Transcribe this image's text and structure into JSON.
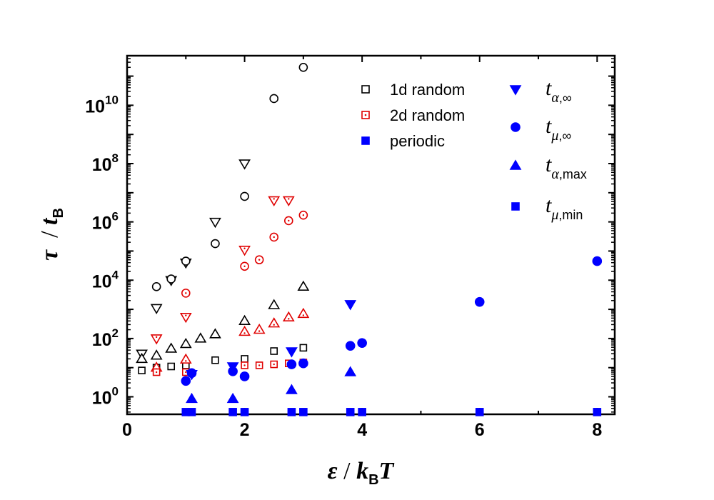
{
  "chart_data": {
    "type": "scatter",
    "xlabel": {
      "symbol": "ε",
      "separator": " / ",
      "k": "k",
      "k_sub": "B",
      "T": "T"
    },
    "ylabel": {
      "symbol": "τ",
      "separator": "  / ",
      "t": "t",
      "t_sub": "B"
    },
    "xlim": [
      0,
      8.3
    ],
    "ylim_log10": [
      -0.6,
      11.7
    ],
    "x_ticks": [
      0,
      2,
      4,
      6,
      8
    ],
    "x_tick_labels": [
      "0",
      "2",
      "4",
      "6",
      "8"
    ],
    "y_tick_exponents": [
      0,
      2,
      4,
      6,
      8,
      10
    ],
    "y_tick_base": "10",
    "legend_left": [
      {
        "label": "1d random",
        "color": "#000000",
        "marker": "square-open"
      },
      {
        "label": "2d random",
        "color": "#e00000",
        "marker": "square-dot"
      },
      {
        "label": "periodic",
        "color": "#0000ff",
        "marker": "square-filled"
      }
    ],
    "legend_right": [
      {
        "symbol": "t",
        "sub_greek": "α",
        "sub_text": ",∞",
        "marker": "triangle-down"
      },
      {
        "symbol": "t",
        "sub_greek": "μ",
        "sub_text": ",∞",
        "marker": "circle"
      },
      {
        "symbol": "t",
        "sub_greek": "α",
        "sub_text": ",max",
        "marker": "triangle-up"
      },
      {
        "symbol": "t",
        "sub_greek": "μ",
        "sub_text": ",min",
        "marker": "square"
      }
    ],
    "series": [
      {
        "name": "1d random t_alpha_inf",
        "color": "#000000",
        "marker": "triangle-down",
        "style": "open",
        "points": [
          [
            0.25,
            30
          ],
          [
            0.5,
            1100
          ],
          [
            0.75,
            10000
          ],
          [
            1.0,
            40000
          ],
          [
            1.5,
            1000000
          ],
          [
            2.0,
            100000000
          ]
        ]
      },
      {
        "name": "1d random t_mu_inf",
        "color": "#000000",
        "marker": "circle",
        "style": "open",
        "points": [
          [
            0.5,
            6000
          ],
          [
            0.75,
            11000
          ],
          [
            1.0,
            45000
          ],
          [
            1.5,
            180000
          ],
          [
            2.0,
            7500000
          ],
          [
            2.5,
            17000000000
          ],
          [
            3.0,
            200000000000
          ]
        ]
      },
      {
        "name": "1d random t_alpha_max",
        "color": "#000000",
        "marker": "triangle-up",
        "style": "open",
        "points": [
          [
            0.25,
            20
          ],
          [
            0.5,
            26
          ],
          [
            0.75,
            45
          ],
          [
            1.0,
            65
          ],
          [
            1.25,
            100
          ],
          [
            1.5,
            140
          ],
          [
            2.0,
            400
          ],
          [
            2.5,
            1400
          ],
          [
            3.0,
            6000
          ]
        ]
      },
      {
        "name": "1d random t_mu_min",
        "color": "#000000",
        "marker": "square",
        "style": "open",
        "points": [
          [
            0.25,
            8
          ],
          [
            0.5,
            10
          ],
          [
            0.75,
            11
          ],
          [
            1.0,
            12
          ],
          [
            1.5,
            18
          ],
          [
            2.0,
            20
          ],
          [
            2.5,
            37
          ],
          [
            3.0,
            48
          ]
        ]
      },
      {
        "name": "2d random t_alpha_inf",
        "color": "#e00000",
        "marker": "triangle-down",
        "style": "dot",
        "points": [
          [
            0.5,
            100
          ],
          [
            1.0,
            550
          ],
          [
            2.0,
            110000
          ],
          [
            2.5,
            5500000
          ],
          [
            2.75,
            5500000
          ]
        ]
      },
      {
        "name": "2d random t_mu_inf",
        "color": "#e00000",
        "marker": "circle",
        "style": "dot",
        "points": [
          [
            1.0,
            3600
          ],
          [
            2.0,
            30000
          ],
          [
            2.25,
            50000
          ],
          [
            2.5,
            300000
          ],
          [
            2.75,
            1100000
          ],
          [
            3.0,
            1700000
          ]
        ]
      },
      {
        "name": "2d random t_alpha_max",
        "color": "#e00000",
        "marker": "triangle-up",
        "style": "dot",
        "points": [
          [
            0.5,
            10
          ],
          [
            1.0,
            19
          ],
          [
            2.0,
            170
          ],
          [
            2.25,
            200
          ],
          [
            2.5,
            330
          ],
          [
            2.75,
            530
          ],
          [
            3.0,
            700
          ]
        ]
      },
      {
        "name": "2d random t_mu_min",
        "color": "#e00000",
        "marker": "square",
        "style": "dot",
        "points": [
          [
            0.5,
            7
          ],
          [
            1.0,
            7
          ],
          [
            2.0,
            12
          ],
          [
            2.25,
            12
          ],
          [
            2.5,
            13
          ],
          [
            2.75,
            14
          ],
          [
            3.0,
            15
          ]
        ]
      },
      {
        "name": "periodic t_alpha_inf",
        "color": "#0000ff",
        "marker": "triangle-down",
        "style": "filled",
        "points": [
          [
            1.1,
            6
          ],
          [
            1.8,
            11
          ],
          [
            2.8,
            36
          ],
          [
            3.8,
            1500
          ]
        ]
      },
      {
        "name": "periodic t_mu_inf",
        "color": "#0000ff",
        "marker": "circle",
        "style": "filled",
        "points": [
          [
            1.0,
            3.5
          ],
          [
            1.1,
            6.5
          ],
          [
            1.8,
            7.5
          ],
          [
            2.0,
            5
          ],
          [
            2.8,
            13
          ],
          [
            3.0,
            14
          ],
          [
            3.8,
            56
          ],
          [
            4.0,
            70
          ],
          [
            6.0,
            1800
          ],
          [
            8.0,
            45000
          ]
        ]
      },
      {
        "name": "periodic t_alpha_max",
        "color": "#0000ff",
        "marker": "triangle-up",
        "style": "filled",
        "points": [
          [
            1.1,
            0.85
          ],
          [
            1.8,
            0.85
          ],
          [
            2.8,
            1.7
          ],
          [
            3.8,
            7
          ]
        ]
      },
      {
        "name": "periodic t_mu_min",
        "color": "#0000ff",
        "marker": "square",
        "style": "filled",
        "points": [
          [
            1.0,
            0.3
          ],
          [
            1.1,
            0.3
          ],
          [
            1.8,
            0.3
          ],
          [
            2.0,
            0.3
          ],
          [
            2.8,
            0.3
          ],
          [
            3.0,
            0.3
          ],
          [
            3.8,
            0.3
          ],
          [
            4.0,
            0.3
          ],
          [
            6.0,
            0.3
          ],
          [
            8.0,
            0.3
          ]
        ]
      }
    ]
  }
}
